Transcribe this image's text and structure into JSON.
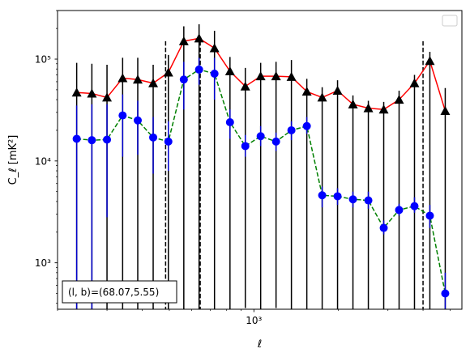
{
  "chart_data": {
    "type": "line",
    "xscale": "log",
    "yscale": "log",
    "xlim": [
      200,
      5500
    ],
    "ylim": [
      350,
      300000
    ],
    "xlabel": "ℓ",
    "ylabel": "C_ℓ [mK²]",
    "x_tick_labels": [
      {
        "value": 1000,
        "label": "10³"
      }
    ],
    "y_tick_labels": [
      {
        "value": 1000,
        "label": "10³"
      },
      {
        "value": 10000,
        "label": "10⁴"
      },
      {
        "value": 100000,
        "label": "10⁵"
      }
    ],
    "grid": false,
    "legend": {
      "position": "top-right",
      "entries": []
    },
    "annotation": "(l, b)=(68.07,5.55)",
    "vlines": [
      485,
      644,
      4000
    ],
    "vline_top": 150000,
    "series": [
      {
        "color": "#ff0000",
        "marker": "triangle",
        "marker_color": "#000000",
        "errorbar_color": "#000000",
        "linestyle": "solid",
        "x": [
          234,
          265,
          300,
          341,
          386,
          438,
          496,
          563,
          638,
          724,
          822,
          932,
          1057,
          1199,
          1360,
          1543,
          1750,
          1985,
          2252,
          2555,
          2898,
          3287,
          3729,
          4230,
          4798
        ],
        "y": [
          47000,
          46000,
          42000,
          65000,
          63000,
          58000,
          74000,
          150000,
          160000,
          128000,
          76000,
          54000,
          68000,
          68000,
          67000,
          48000,
          42000,
          49000,
          36000,
          33000,
          32000,
          40000,
          58000,
          96000,
          31000
        ],
        "yerr_low": [
          320,
          310,
          310,
          340,
          300,
          290,
          300,
          330,
          320,
          310,
          300,
          360,
          330,
          360,
          350,
          340,
          335,
          335,
          345,
          345,
          350,
          345,
          340,
          345,
          310
        ],
        "yerr_high": [
          92000,
          90000,
          88000,
          103000,
          103000,
          88000,
          110000,
          210000,
          220000,
          190000,
          105000,
          82000,
          92000,
          94000,
          98000,
          64000,
          53000,
          62000,
          44000,
          39000,
          38000,
          49000,
          70000,
          118000,
          52000
        ]
      },
      {
        "color": "#008000",
        "marker": "circle",
        "marker_color": "#0000ff",
        "errorbar_color": "#0000cc",
        "linestyle": "dashed",
        "x": [
          234,
          265,
          300,
          341,
          386,
          438,
          496,
          563,
          638,
          724,
          822,
          932,
          1057,
          1199,
          1360,
          1543,
          1750,
          1985,
          2252,
          2555,
          2898,
          3287,
          3729,
          4230,
          4798
        ],
        "y": [
          16500,
          16000,
          16200,
          28000,
          25000,
          17000,
          15500,
          63000,
          79000,
          72000,
          24000,
          14000,
          17500,
          15500,
          20000,
          22000,
          4600,
          4500,
          4200,
          4100,
          2200,
          3300,
          3600,
          2900,
          500
        ],
        "yerr_low": [
          320,
          320,
          2800,
          11000,
          11500,
          7500,
          8000,
          32000,
          56000,
          40000,
          16500,
          11000,
          14000,
          12500,
          16000,
          18500,
          3500,
          3700,
          3500,
          3400,
          1900,
          2900,
          3100,
          2200,
          320
        ],
        "yerr_high": [
          35000,
          36000,
          36000,
          45000,
          39000,
          27000,
          24500,
          94000,
          103000,
          103000,
          32000,
          18000,
          22000,
          19000,
          24500,
          27000,
          5600,
          5400,
          5000,
          5000,
          2600,
          3800,
          4400,
          3700,
          800
        ]
      }
    ]
  }
}
